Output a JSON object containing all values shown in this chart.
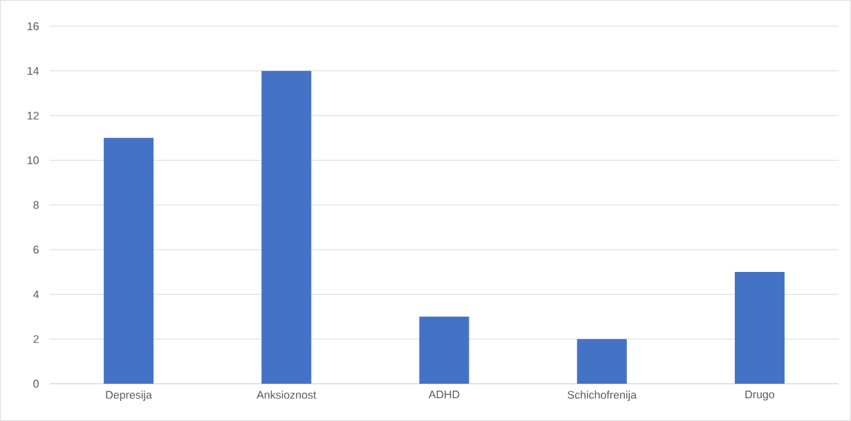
{
  "chart_data": {
    "type": "bar",
    "categories": [
      "Depresija",
      "Anksioznost",
      "ADHD",
      "Schichofrenija",
      "Drugo"
    ],
    "values": [
      11,
      14,
      3,
      2,
      5
    ],
    "color": "#4472c4",
    "ylim": [
      0,
      16
    ],
    "yticks": [
      0,
      2,
      4,
      6,
      8,
      10,
      12,
      14,
      16
    ],
    "grid": "y"
  }
}
